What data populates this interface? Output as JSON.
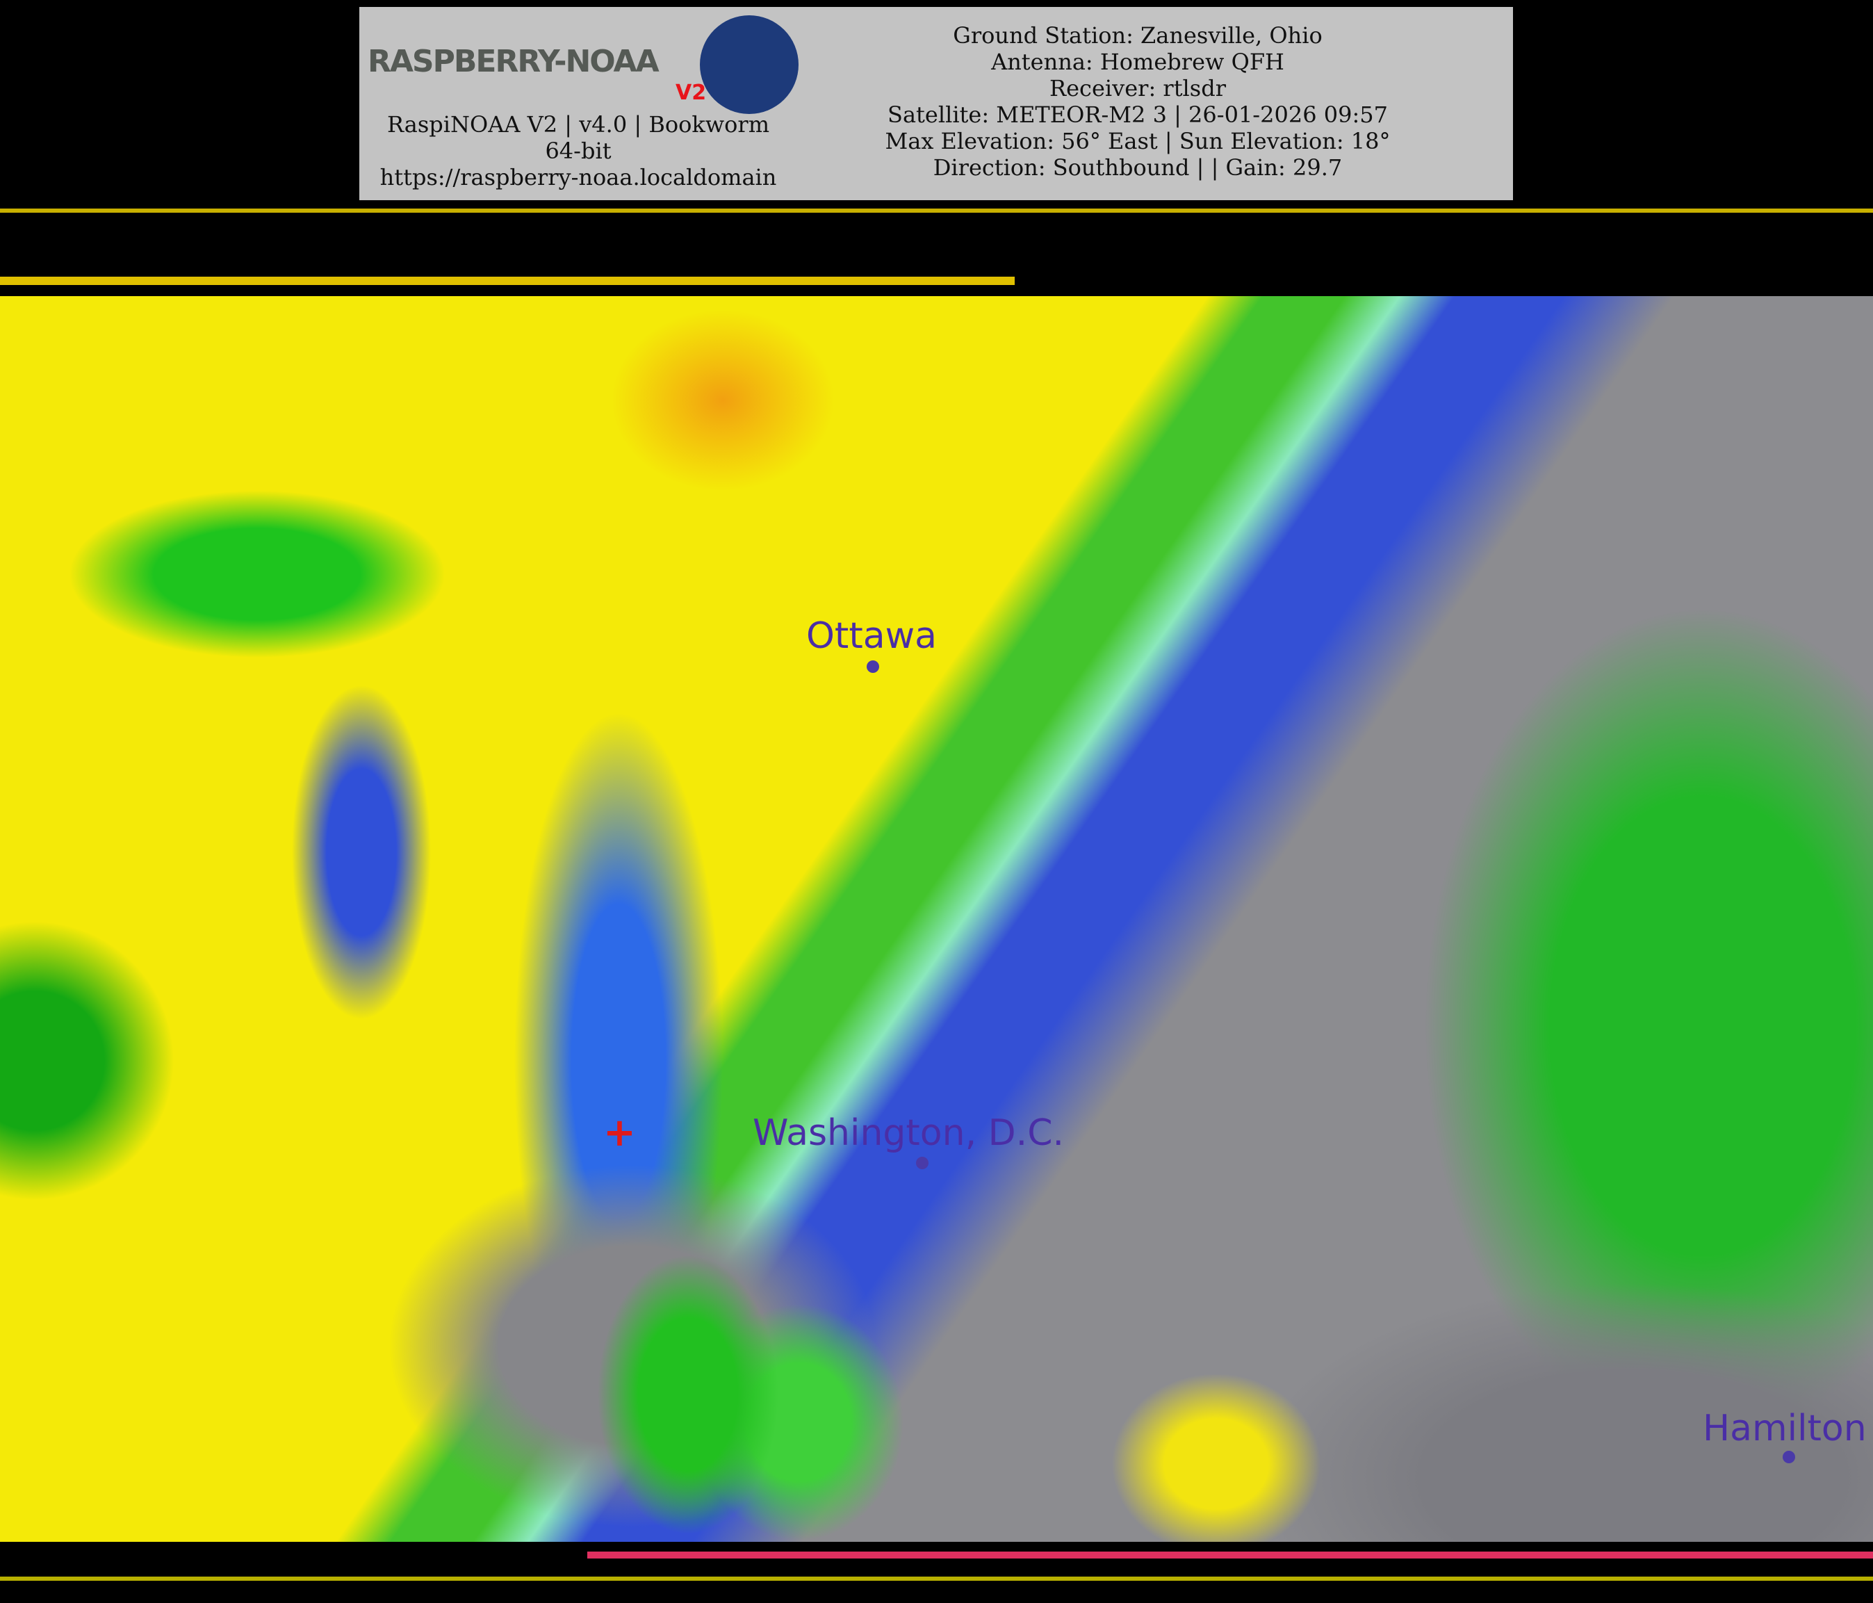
{
  "header": {
    "logo_text": "RASPBERRY-NOAA",
    "logo_badge": "V2",
    "software_line": "RaspiNOAA V2 | v4.0 | Bookworm 64-bit",
    "url": "https://raspberry-noaa.localdomain",
    "ground_station": "Ground Station: Zanesville, Ohio",
    "antenna": "Antenna: Homebrew QFH",
    "receiver": "Receiver: rtlsdr",
    "satellite": "Satellite: METEOR-M2 3 | 26-01-2026 09:57",
    "elevation": "Max Elevation: 56° East | Sun Elevation: 18°",
    "direction": "Direction: Southbound | | Gain: 29.7"
  },
  "map": {
    "cities": [
      {
        "name": "Ottawa"
      },
      {
        "name": "Washington, D.C."
      },
      {
        "name": "Hamilton"
      }
    ],
    "station_marker": "red-cross-icon",
    "colors": {
      "yellow": "#f4ea08",
      "green": "#1fc21f",
      "blue": "#2236d8",
      "cyan": "#4fd6f0",
      "gray": "#8a8a8e"
    }
  }
}
